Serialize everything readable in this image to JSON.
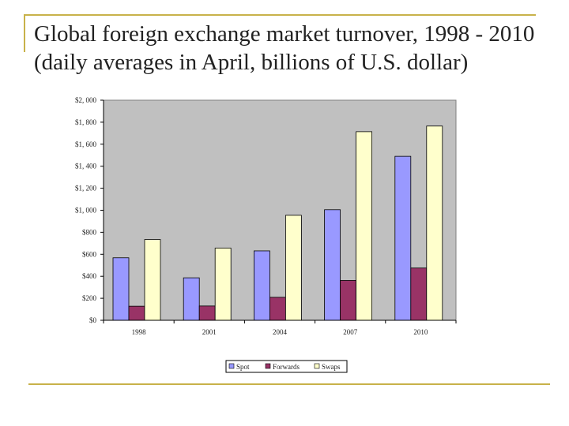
{
  "slide": {
    "title": "Global foreign exchange market turnover, 1998 - 2010 (daily averages in April, billions of U.S. dollar)"
  },
  "chart_data": {
    "type": "bar",
    "title": "",
    "xlabel": "",
    "ylabel": "",
    "categories": [
      "1998",
      "2001",
      "2004",
      "2007",
      "2010"
    ],
    "ylim": [
      0,
      2000
    ],
    "y_ticks": [
      0,
      200,
      400,
      600,
      800,
      1000,
      1200,
      1400,
      1600,
      1800,
      2000
    ],
    "y_tick_labels": [
      "$0",
      "$200",
      "$400",
      "$600",
      "$800",
      "$1, 000",
      "$1, 200",
      "$1, 400",
      "$1, 600",
      "$1, 800",
      "$2, 000"
    ],
    "grid": false,
    "legend_position": "bottom",
    "series": [
      {
        "name": "Spot",
        "color": "#9999ff",
        "values": [
          568,
          386,
          631,
          1005,
          1490
        ]
      },
      {
        "name": "Forwards",
        "color": "#993366",
        "values": [
          128,
          130,
          209,
          362,
          475
        ]
      },
      {
        "name": "Swaps",
        "color": "#ffffcc",
        "values": [
          734,
          656,
          954,
          1714,
          1765
        ]
      }
    ],
    "plot_background": "#c0c0c0"
  }
}
